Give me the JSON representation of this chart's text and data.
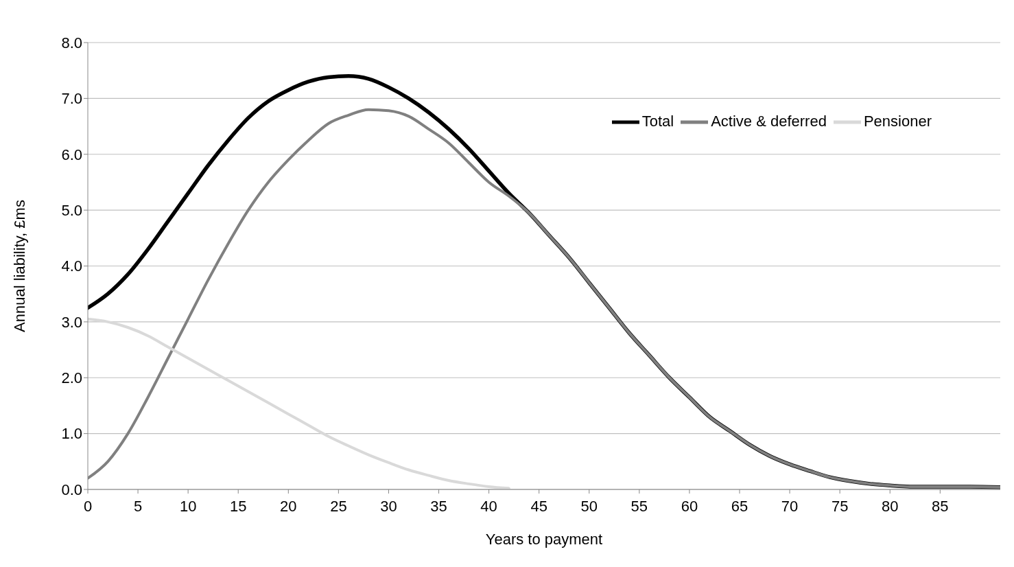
{
  "chart_data": {
    "type": "line",
    "xlabel": "Years to payment",
    "ylabel": "Annual liability, £ms",
    "x": [
      0,
      2,
      4,
      6,
      8,
      10,
      12,
      14,
      16,
      18,
      20,
      22,
      24,
      26,
      28,
      30,
      32,
      34,
      36,
      38,
      40,
      42,
      44,
      46,
      48,
      50,
      52,
      54,
      56,
      58,
      60,
      62,
      64,
      66,
      68,
      70,
      72,
      74,
      76,
      78,
      80,
      82,
      84,
      86,
      88,
      91
    ],
    "series": [
      {
        "name": "Total",
        "color": "#000000",
        "values": [
          3.25,
          3.5,
          3.85,
          4.3,
          4.8,
          5.3,
          5.8,
          6.25,
          6.65,
          6.95,
          7.15,
          7.3,
          7.38,
          7.4,
          7.35,
          7.2,
          7.0,
          6.75,
          6.45,
          6.1,
          5.7,
          5.3,
          4.95,
          4.55,
          4.15,
          3.7,
          3.25,
          2.8,
          2.4,
          2.0,
          1.65,
          1.3,
          1.05,
          0.8,
          0.6,
          0.45,
          0.33,
          0.22,
          0.15,
          0.1,
          0.07,
          0.05,
          0.05,
          0.05,
          0.05,
          0.04
        ]
      },
      {
        "name": "Active & deferred",
        "color": "#808080",
        "values": [
          0.2,
          0.5,
          1.0,
          1.65,
          2.35,
          3.05,
          3.75,
          4.4,
          5.0,
          5.5,
          5.9,
          6.25,
          6.55,
          6.7,
          6.8,
          6.78,
          6.68,
          6.45,
          6.2,
          5.85,
          5.5,
          5.25,
          4.95,
          4.55,
          4.15,
          3.7,
          3.25,
          2.8,
          2.4,
          2.0,
          1.65,
          1.3,
          1.05,
          0.8,
          0.6,
          0.45,
          0.33,
          0.22,
          0.15,
          0.1,
          0.07,
          0.05,
          0.05,
          0.05,
          0.05,
          0.04
        ]
      },
      {
        "name": "Pensioner",
        "color": "#d9d9d9",
        "values": [
          3.05,
          3.0,
          2.9,
          2.75,
          2.55,
          2.35,
          2.15,
          1.95,
          1.75,
          1.55,
          1.35,
          1.15,
          0.95,
          0.78,
          0.62,
          0.48,
          0.35,
          0.25,
          0.16,
          0.1,
          0.05,
          0.02,
          null,
          null,
          null,
          null,
          null,
          null,
          null,
          null,
          null,
          null,
          null,
          null,
          null,
          null,
          null,
          null,
          null,
          null,
          null,
          null,
          null,
          null,
          null,
          null
        ]
      }
    ],
    "xlim": [
      0,
      91
    ],
    "xticks": [
      0,
      5,
      10,
      15,
      20,
      25,
      30,
      35,
      40,
      45,
      50,
      55,
      60,
      65,
      70,
      75,
      80,
      85
    ],
    "ylim": [
      0,
      8
    ],
    "yticks": [
      {
        "value": 0,
        "label": "0.0"
      },
      {
        "value": 1,
        "label": "1.0"
      },
      {
        "value": 2,
        "label": "2.0"
      },
      {
        "value": 3,
        "label": "3.0"
      },
      {
        "value": 4,
        "label": "4.0"
      },
      {
        "value": 5,
        "label": "5.0"
      },
      {
        "value": 6,
        "label": "6.0"
      },
      {
        "value": 7,
        "label": "7.0"
      },
      {
        "value": 8,
        "label": "8.0"
      }
    ],
    "grid": "y",
    "legend": "top right",
    "marker": "none",
    "line_style": "solid"
  }
}
